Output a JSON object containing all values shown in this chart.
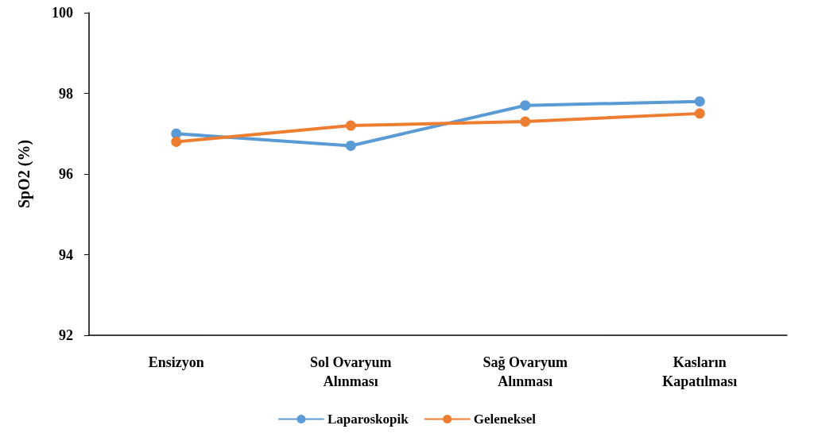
{
  "chart_data": {
    "type": "line",
    "ylabel": "SpO2 (%)",
    "categories": [
      "Ensizyon",
      "Sol Ovaryum\nAlınması",
      "Sağ Ovaryum\nAlınması",
      "Kasların\nKapatılması"
    ],
    "series": [
      {
        "name": "Laparoskopik",
        "color": "#5b9bd5",
        "values": [
          97.0,
          96.7,
          97.7,
          97.8
        ]
      },
      {
        "name": "Geleneksel",
        "color": "#ed7d31",
        "values": [
          96.8,
          97.2,
          97.3,
          97.5
        ]
      }
    ],
    "ylim": [
      92,
      100
    ],
    "yticks": [
      92,
      94,
      96,
      98,
      100
    ],
    "grid": false,
    "legend": "bottom",
    "marker": "circle",
    "line_style": "solid"
  }
}
